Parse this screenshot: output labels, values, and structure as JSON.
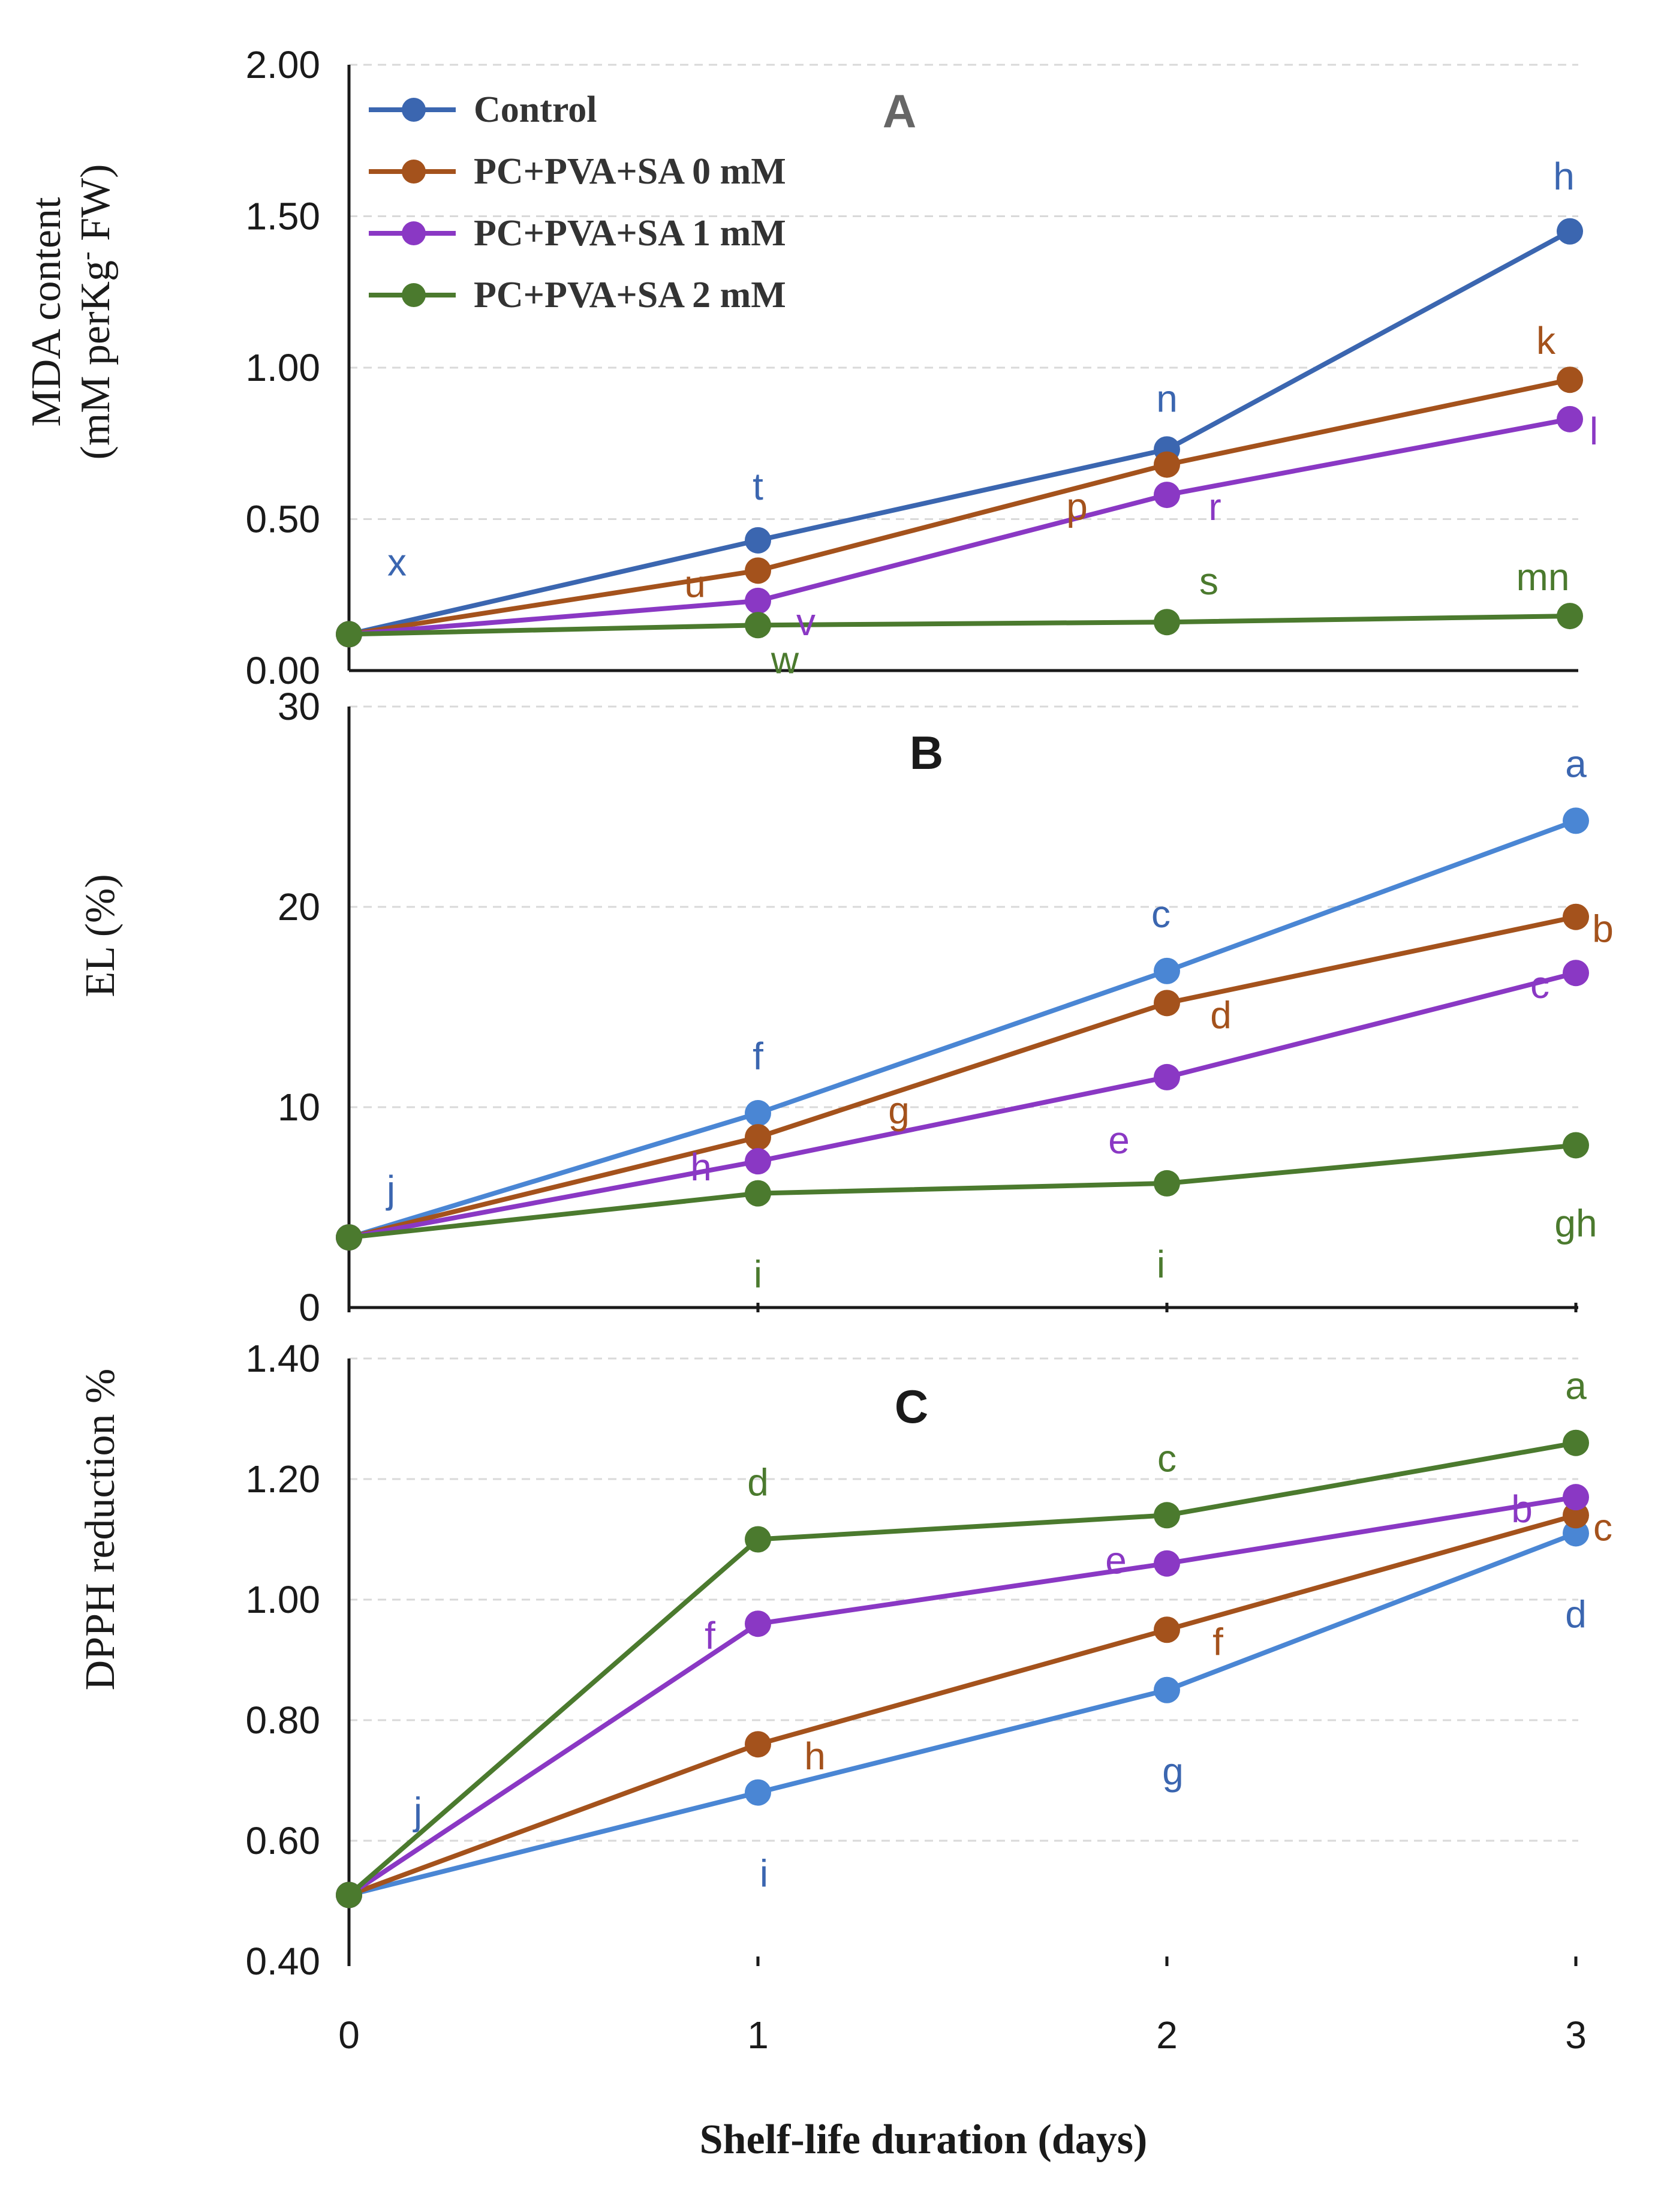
{
  "colors": {
    "control": "#3b66b0",
    "sa0": "#a4521c",
    "sa1": "#8a38c4",
    "sa2": "#4b7a2e",
    "control_light": "#4a86d4",
    "title": "#1a1a1a"
  },
  "figure": {
    "xlabel": "Shelf-life duration (days)",
    "x_ticks": [
      "0",
      "1",
      "2",
      "3"
    ]
  },
  "chart_data": [
    {
      "type": "line",
      "panel": "A",
      "title": "A",
      "ylabel_line1": "MDA content",
      "ylabel_line2": "(mM perKg",
      "ylabel_sup": "-",
      "ylabel_line2b": " FW)",
      "ylim": [
        0,
        2.0
      ],
      "y_ticks": [
        "0.00",
        "0.50",
        "1.00",
        "1.50",
        "2.00"
      ],
      "x": [
        0,
        1,
        2,
        3
      ],
      "legend_position": "top-left",
      "series": [
        {
          "key": "control",
          "name": "Control",
          "values": [
            0.12,
            0.43,
            0.73,
            1.45
          ],
          "letters": [
            "x",
            "t",
            "n",
            "h"
          ]
        },
        {
          "key": "sa0",
          "name": "PC+PVA+SA 0 mM",
          "values": [
            0.12,
            0.33,
            0.68,
            0.96
          ],
          "letters": [
            "",
            "u",
            "p",
            "k"
          ]
        },
        {
          "key": "sa1",
          "name": "PC+PVA+SA 1 mM",
          "values": [
            0.12,
            0.23,
            0.58,
            0.83
          ],
          "letters": [
            "",
            "v",
            "r",
            "l"
          ]
        },
        {
          "key": "sa2",
          "name": "PC+PVA+SA 2 mM",
          "values": [
            0.12,
            0.15,
            0.16,
            0.18
          ],
          "letters": [
            "",
            "w",
            "s",
            "mn"
          ]
        }
      ]
    },
    {
      "type": "line",
      "panel": "B",
      "title": "B",
      "ylabel": "EL (%)",
      "ylim": [
        0,
        30
      ],
      "y_ticks": [
        "0",
        "10",
        "20",
        "30"
      ],
      "x": [
        0,
        1,
        2,
        3
      ],
      "series": [
        {
          "key": "control",
          "name": "Control",
          "values": [
            3.5,
            9.7,
            16.8,
            24.3
          ],
          "letters": [
            "j",
            "f",
            "c",
            "a"
          ]
        },
        {
          "key": "sa0",
          "name": "PC+PVA+SA 0 mM",
          "values": [
            3.5,
            8.5,
            15.2,
            19.5
          ],
          "letters": [
            "",
            "g",
            "d",
            "b"
          ]
        },
        {
          "key": "sa1",
          "name": "PC+PVA+SA 1 mM",
          "values": [
            3.5,
            7.3,
            11.5,
            16.7
          ],
          "letters": [
            "",
            "h",
            "e",
            "c"
          ]
        },
        {
          "key": "sa2",
          "name": "PC+PVA+SA 2 mM",
          "values": [
            3.5,
            5.7,
            6.2,
            8.1
          ],
          "letters": [
            "",
            "i",
            "i",
            "gh"
          ]
        }
      ]
    },
    {
      "type": "line",
      "panel": "C",
      "title": "C",
      "ylabel": "DPPH reduction %",
      "ylim": [
        0.4,
        1.4
      ],
      "y_ticks": [
        "0.40",
        "0.60",
        "0.80",
        "1.00",
        "1.20",
        "1.40"
      ],
      "x": [
        0,
        1,
        2,
        3
      ],
      "series": [
        {
          "key": "control",
          "name": "Control",
          "values": [
            0.51,
            0.68,
            0.85,
            1.11
          ],
          "letters": [
            "j",
            "i",
            "g",
            "d"
          ]
        },
        {
          "key": "sa0",
          "name": "PC+PVA+SA 0 mM",
          "values": [
            0.51,
            0.76,
            0.95,
            1.14
          ],
          "letters": [
            "",
            "h",
            "f",
            "c"
          ]
        },
        {
          "key": "sa1",
          "name": "PC+PVA+SA 1 mM",
          "values": [
            0.51,
            0.96,
            1.06,
            1.17
          ],
          "letters": [
            "",
            "f",
            "e",
            "b"
          ]
        },
        {
          "key": "sa2",
          "name": "PC+PVA+SA 2 mM",
          "values": [
            0.51,
            1.1,
            1.14,
            1.26
          ],
          "letters": [
            "",
            "d",
            "c",
            "a"
          ]
        }
      ]
    }
  ]
}
